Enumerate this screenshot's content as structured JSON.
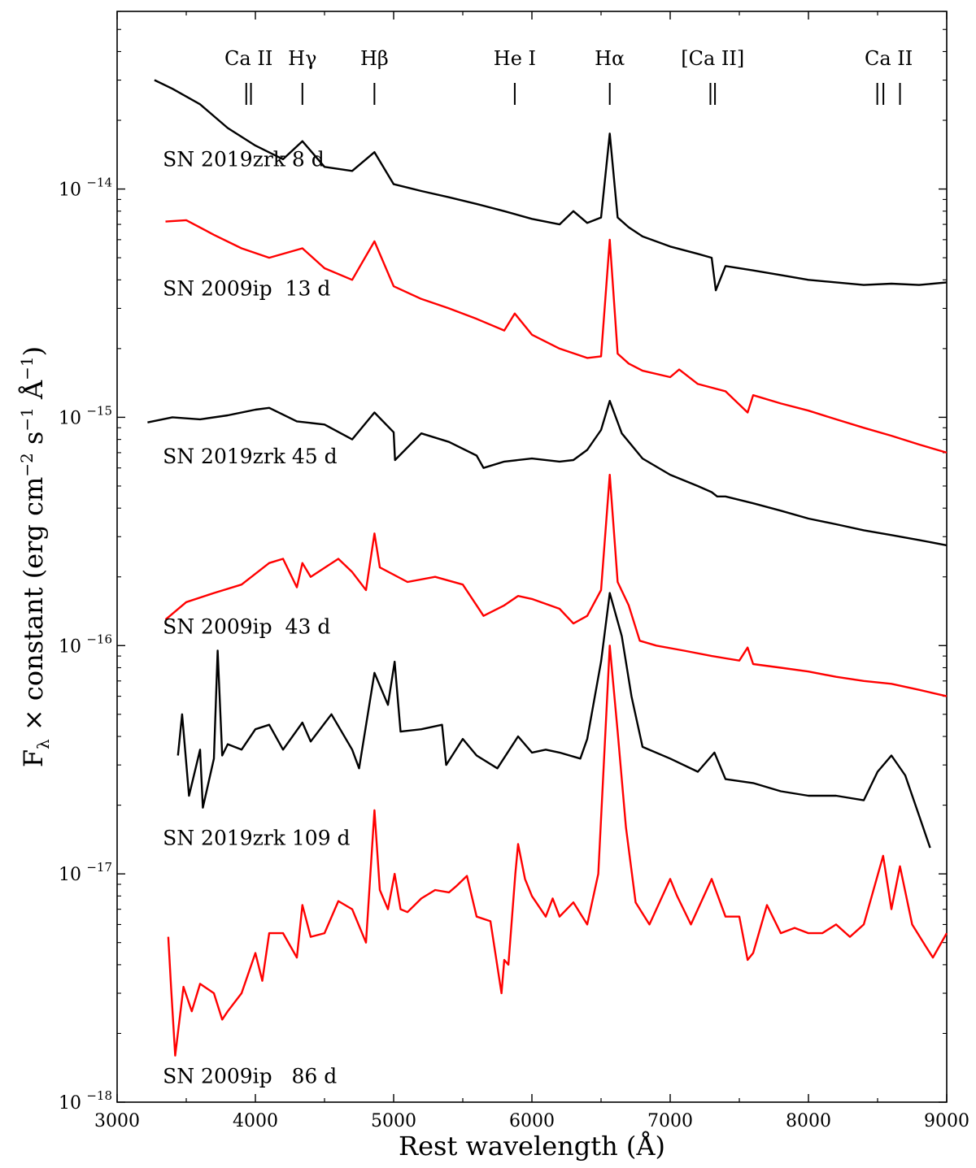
{
  "chart_data": {
    "type": "line",
    "title": "",
    "xlabel": "Rest wavelength (Å)",
    "ylabel": "F_λ × constant (erg cm^-2 s^-1 Å^-1)",
    "xlim": [
      3000,
      9000
    ],
    "ylim": [
      1e-18,
      6e-14
    ],
    "yscale": "log",
    "x_ticks": [
      {
        "value": 3000,
        "label": "3000"
      },
      {
        "value": 4000,
        "label": "4000"
      },
      {
        "value": 5000,
        "label": "5000"
      },
      {
        "value": 6000,
        "label": "6000"
      },
      {
        "value": 7000,
        "label": "7000"
      },
      {
        "value": 8000,
        "label": "8000"
      },
      {
        "value": 9000,
        "label": "9000"
      }
    ],
    "y_ticks": [
      {
        "value": 1e-14,
        "label": "10",
        "exponent": "−14"
      },
      {
        "value": 1e-15,
        "label": "10",
        "exponent": "−15"
      },
      {
        "value": 1e-16,
        "label": "10",
        "exponent": "−16"
      },
      {
        "value": 1e-17,
        "label": "10",
        "exponent": "−17"
      },
      {
        "value": 1e-18,
        "label": "10",
        "exponent": "−18"
      }
    ],
    "line_markers": [
      {
        "label": "Ca II",
        "wavelengths": [
          3934,
          3968
        ]
      },
      {
        "label": "Hγ",
        "wavelengths": [
          4340
        ]
      },
      {
        "label": "Hβ",
        "wavelengths": [
          4861
        ]
      },
      {
        "label": "He I",
        "wavelengths": [
          5876
        ]
      },
      {
        "label": "Hα",
        "wavelengths": [
          6563
        ]
      },
      {
        "label": "[Ca II]",
        "wavelengths": [
          7291,
          7324
        ]
      },
      {
        "label": "Ca II",
        "wavelengths": [
          8498,
          8542,
          8662
        ]
      }
    ],
    "series": [
      {
        "name": "SN 2019zrk 8 d",
        "color": "#000000",
        "x": [
          3270,
          3400,
          3600,
          3800,
          4000,
          4200,
          4340,
          4500,
          4700,
          4861,
          5000,
          5200,
          5400,
          5600,
          5800,
          6000,
          6200,
          6300,
          6400,
          6500,
          6563,
          6620,
          6700,
          6800,
          7000,
          7200,
          7300,
          7330,
          7400,
          7600,
          7800,
          8000,
          8200,
          8400,
          8600,
          8800,
          9000
        ],
        "y": [
          3e-14,
          2.75e-14,
          2.35e-14,
          1.85e-14,
          1.55e-14,
          1.35e-14,
          1.62e-14,
          1.25e-14,
          1.2e-14,
          1.45e-14,
          1.05e-14,
          9.8e-15,
          9.2e-15,
          8.6e-15,
          8e-15,
          7.4e-15,
          7e-15,
          8e-15,
          7.1e-15,
          7.5e-15,
          1.75e-14,
          7.5e-15,
          6.8e-15,
          6.2e-15,
          5.6e-15,
          5.2e-15,
          5e-15,
          3.6e-15,
          4.6e-15,
          4.4e-15,
          4.2e-15,
          4e-15,
          3.9e-15,
          3.8e-15,
          3.85e-15,
          3.8e-15,
          3.9e-15
        ]
      },
      {
        "name": "SN 2009ip  13 d",
        "color": "#ff0000",
        "x": [
          3350,
          3500,
          3700,
          3900,
          4100,
          4340,
          4500,
          4700,
          4861,
          5000,
          5200,
          5400,
          5600,
          5800,
          5876,
          6000,
          6200,
          6400,
          6500,
          6563,
          6620,
          6700,
          6800,
          7000,
          7065,
          7200,
          7400,
          7560,
          7600,
          7800,
          8000,
          8200,
          8400,
          8600,
          8800,
          9000
        ],
        "y": [
          7.2e-15,
          7.3e-15,
          6.3e-15,
          5.5e-15,
          5e-15,
          5.5e-15,
          4.5e-15,
          4e-15,
          5.9e-15,
          3.75e-15,
          3.3e-15,
          3e-15,
          2.7e-15,
          2.4e-15,
          2.85e-15,
          2.3e-15,
          2e-15,
          1.82e-15,
          1.85e-15,
          6e-15,
          1.9e-15,
          1.72e-15,
          1.6e-15,
          1.5e-15,
          1.62e-15,
          1.4e-15,
          1.3e-15,
          1.05e-15,
          1.25e-15,
          1.15e-15,
          1.07e-15,
          9.8e-16,
          9e-16,
          8.3e-16,
          7.6e-16,
          7e-16
        ]
      },
      {
        "name": "SN 2019zrk 45 d",
        "color": "#000000",
        "x": [
          3220,
          3400,
          3600,
          3800,
          4000,
          4100,
          4300,
          4500,
          4700,
          4861,
          5000,
          5010,
          5200,
          5400,
          5600,
          5650,
          5800,
          6000,
          6200,
          6300,
          6400,
          6500,
          6563,
          6650,
          6800,
          7000,
          7200,
          7300,
          7340,
          7400,
          7600,
          7800,
          8000,
          8200,
          8400,
          8600,
          8800,
          9000
        ],
        "y": [
          9.5e-16,
          1e-15,
          9.8e-16,
          1.02e-15,
          1.08e-15,
          1.1e-15,
          9.6e-16,
          9.3e-16,
          8e-16,
          1.05e-15,
          8.6e-16,
          6.5e-16,
          8.5e-16,
          7.8e-16,
          6.8e-16,
          6e-16,
          6.4e-16,
          6.6e-16,
          6.4e-16,
          6.5e-16,
          7.2e-16,
          8.8e-16,
          1.18e-15,
          8.5e-16,
          6.6e-16,
          5.6e-16,
          5e-16,
          4.7e-16,
          4.5e-16,
          4.5e-16,
          4.2e-16,
          3.9e-16,
          3.6e-16,
          3.4e-16,
          3.2e-16,
          3.05e-16,
          2.9e-16,
          2.75e-16
        ]
      },
      {
        "name": "SN 2009ip  43 d",
        "color": "#ff0000",
        "x": [
          3350,
          3500,
          3700,
          3900,
          4100,
          4200,
          4300,
          4340,
          4400,
          4600,
          4700,
          4800,
          4861,
          4900,
          5100,
          5300,
          5500,
          5600,
          5650,
          5800,
          5900,
          6000,
          6200,
          6300,
          6400,
          6500,
          6563,
          6620,
          6700,
          6780,
          6900,
          7100,
          7300,
          7500,
          7560,
          7600,
          7800,
          8000,
          8200,
          8400,
          8600,
          8800,
          9000
        ],
        "y": [
          1.3e-16,
          1.55e-16,
          1.7e-16,
          1.85e-16,
          2.3e-16,
          2.4e-16,
          1.8e-16,
          2.3e-16,
          2e-16,
          2.4e-16,
          2.1e-16,
          1.75e-16,
          3.1e-16,
          2.2e-16,
          1.9e-16,
          2e-16,
          1.85e-16,
          1.5e-16,
          1.35e-16,
          1.5e-16,
          1.65e-16,
          1.6e-16,
          1.45e-16,
          1.25e-16,
          1.35e-16,
          1.75e-16,
          5.6e-16,
          1.9e-16,
          1.5e-16,
          1.05e-16,
          1e-16,
          9.5e-17,
          9e-17,
          8.6e-17,
          9.8e-17,
          8.3e-17,
          8e-17,
          7.7e-17,
          7.3e-17,
          7e-17,
          6.8e-17,
          6.4e-17,
          6e-17
        ]
      },
      {
        "name": "SN 2019zrk 109 d",
        "color": "#000000",
        "x": [
          3440,
          3470,
          3520,
          3600,
          3620,
          3700,
          3727,
          3760,
          3800,
          3900,
          4000,
          4100,
          4200,
          4340,
          4400,
          4550,
          4700,
          4750,
          4861,
          4959,
          5007,
          5050,
          5200,
          5350,
          5380,
          5500,
          5600,
          5750,
          5900,
          6000,
          6100,
          6200,
          6350,
          6400,
          6500,
          6563,
          6650,
          6720,
          6800,
          7000,
          7200,
          7320,
          7400,
          7600,
          7800,
          8000,
          8200,
          8400,
          8500,
          8600,
          8700,
          8800,
          8880
        ],
        "y": [
          3.3e-17,
          5e-17,
          2.2e-17,
          3.5e-17,
          1.95e-17,
          3.2e-17,
          9.5e-17,
          3.3e-17,
          3.7e-17,
          3.5e-17,
          4.3e-17,
          4.5e-17,
          3.5e-17,
          4.6e-17,
          3.8e-17,
          5e-17,
          3.5e-17,
          2.9e-17,
          7.6e-17,
          5.5e-17,
          8.5e-17,
          4.2e-17,
          4.3e-17,
          4.5e-17,
          3e-17,
          3.9e-17,
          3.3e-17,
          2.9e-17,
          4e-17,
          3.4e-17,
          3.5e-17,
          3.4e-17,
          3.2e-17,
          3.9e-17,
          8.5e-17,
          1.7e-16,
          1.1e-16,
          6e-17,
          3.6e-17,
          3.2e-17,
          2.8e-17,
          3.4e-17,
          2.6e-17,
          2.5e-17,
          2.3e-17,
          2.2e-17,
          2.2e-17,
          2.1e-17,
          2.8e-17,
          3.3e-17,
          2.7e-17,
          1.8e-17,
          1.3e-17
        ]
      },
      {
        "name": "SN 2009ip   86 d",
        "color": "#ff0000",
        "x": [
          3370,
          3390,
          3420,
          3480,
          3540,
          3600,
          3700,
          3760,
          3800,
          3900,
          4000,
          4050,
          4100,
          4200,
          4300,
          4340,
          4400,
          4500,
          4600,
          4700,
          4800,
          4861,
          4900,
          4959,
          5007,
          5050,
          5100,
          5200,
          5300,
          5400,
          5450,
          5530,
          5600,
          5700,
          5780,
          5800,
          5830,
          5880,
          5900,
          5950,
          6000,
          6100,
          6150,
          6200,
          6300,
          6400,
          6480,
          6563,
          6620,
          6680,
          6750,
          6850,
          7000,
          7050,
          7150,
          7300,
          7400,
          7500,
          7560,
          7600,
          7700,
          7800,
          7900,
          8000,
          8100,
          8200,
          8300,
          8400,
          8540,
          8600,
          8662,
          8750,
          8850,
          8900,
          9000
        ],
        "y": [
          5.3e-18,
          3.2e-18,
          1.6e-18,
          3.2e-18,
          2.5e-18,
          3.3e-18,
          3e-18,
          2.3e-18,
          2.5e-18,
          3e-18,
          4.5e-18,
          3.4e-18,
          5.5e-18,
          5.5e-18,
          4.3e-18,
          7.3e-18,
          5.3e-18,
          5.5e-18,
          7.6e-18,
          7e-18,
          5e-18,
          1.9e-17,
          8.5e-18,
          7e-18,
          1e-17,
          7e-18,
          6.8e-18,
          7.8e-18,
          8.5e-18,
          8.3e-18,
          8.8e-18,
          9.8e-18,
          6.5e-18,
          6.2e-18,
          3e-18,
          4.2e-18,
          4e-18,
          1e-17,
          1.35e-17,
          9.5e-18,
          8e-18,
          6.5e-18,
          7.8e-18,
          6.5e-18,
          7.5e-18,
          6e-18,
          1e-17,
          1e-16,
          4.2e-17,
          1.6e-17,
          7.5e-18,
          6e-18,
          9.5e-18,
          8e-18,
          6e-18,
          9.5e-18,
          6.5e-18,
          6.5e-18,
          4.2e-18,
          4.5e-18,
          7.3e-18,
          5.5e-18,
          5.8e-18,
          5.5e-18,
          5.5e-18,
          6e-18,
          5.3e-18,
          6e-18,
          1.2e-17,
          7e-18,
          1.08e-17,
          6e-18,
          4.8e-18,
          4.3e-18,
          5.5e-18
        ]
      }
    ],
    "series_labels": [
      {
        "text": "SN 2019zrk 8 d",
        "anchor_wavelength": 3330,
        "anchor_flux": 1.26e-14
      },
      {
        "text": "SN 2009ip  13 d",
        "anchor_wavelength": 3330,
        "anchor_flux": 3.42e-15
      },
      {
        "text": "SN 2019zrk 45 d",
        "anchor_wavelength": 3330,
        "anchor_flux": 6.3e-16
      },
      {
        "text": "SN 2009ip  43 d",
        "anchor_wavelength": 3330,
        "anchor_flux": 1.13e-16
      },
      {
        "text": "SN 2019zrk 109 d",
        "anchor_wavelength": 3330,
        "anchor_flux": 1.34e-17
      },
      {
        "text": "SN 2009ip   86 d",
        "anchor_wavelength": 3330,
        "anchor_flux": 1.21e-18
      }
    ]
  }
}
